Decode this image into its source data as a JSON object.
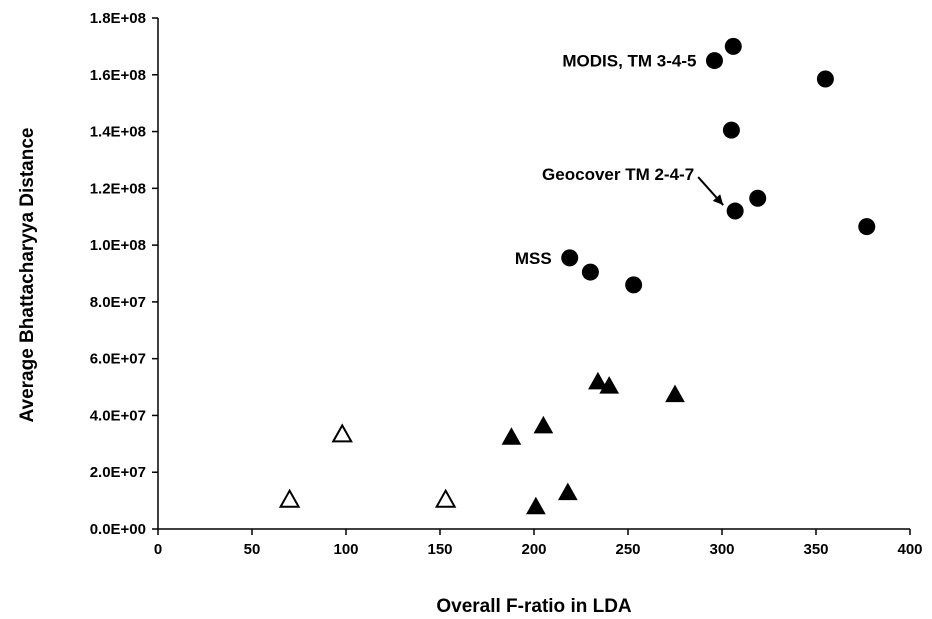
{
  "chart_data": {
    "type": "scatter",
    "title": "",
    "xlabel": "Overall F-ratio in LDA",
    "ylabel": "Average Bhattacharyya Distance",
    "xlim": [
      0,
      400
    ],
    "ylim": [
      0,
      180000000
    ],
    "x_ticks": [
      0,
      50,
      100,
      150,
      200,
      250,
      300,
      350,
      400
    ],
    "x_tick_labels": [
      "0",
      "50",
      "100",
      "150",
      "200",
      "250",
      "300",
      "350",
      "400"
    ],
    "y_ticks": [
      0,
      20000000,
      40000000,
      60000000,
      80000000,
      100000000,
      120000000,
      140000000,
      160000000,
      180000000
    ],
    "y_tick_labels": [
      "0.0E+00",
      "2.0E+07",
      "4.0E+07",
      "6.0E+07",
      "8.0E+07",
      "1.0E+08",
      "1.2E+08",
      "1.4E+08",
      "1.6E+08",
      "1.8E+08"
    ],
    "grid": false,
    "series": [
      {
        "marker": "filled-circle",
        "color": "#000000",
        "points": [
          {
            "x": 296,
            "y": 165000000
          },
          {
            "x": 306,
            "y": 170000000
          },
          {
            "x": 355,
            "y": 158500000
          },
          {
            "x": 305,
            "y": 140500000
          },
          {
            "x": 307,
            "y": 112000000
          },
          {
            "x": 319,
            "y": 116500000
          },
          {
            "x": 377,
            "y": 106500000
          },
          {
            "x": 219,
            "y": 95500000
          },
          {
            "x": 230,
            "y": 90500000
          },
          {
            "x": 253,
            "y": 86000000
          }
        ]
      },
      {
        "marker": "filled-triangle",
        "color": "#000000",
        "points": [
          {
            "x": 234,
            "y": 51500000
          },
          {
            "x": 240,
            "y": 50000000
          },
          {
            "x": 275,
            "y": 47000000
          },
          {
            "x": 205,
            "y": 36000000
          },
          {
            "x": 188,
            "y": 32000000
          },
          {
            "x": 218,
            "y": 12500000
          },
          {
            "x": 201,
            "y": 7500000
          }
        ]
      },
      {
        "marker": "open-triangle",
        "color": "#000000",
        "points": [
          {
            "x": 70,
            "y": 10000000
          },
          {
            "x": 98,
            "y": 33000000
          },
          {
            "x": 153,
            "y": 10000000
          }
        ]
      }
    ],
    "annotations": [
      {
        "text": "MODIS, TM 3-4-5",
        "x": 296,
        "y": 165000000,
        "position": "left"
      },
      {
        "text": "Geocover TM 2-4-7",
        "x": 307,
        "y": 112000000,
        "position": "upper-left",
        "arrow": true
      },
      {
        "text": "MSS",
        "x": 219,
        "y": 95500000,
        "position": "left"
      }
    ]
  }
}
